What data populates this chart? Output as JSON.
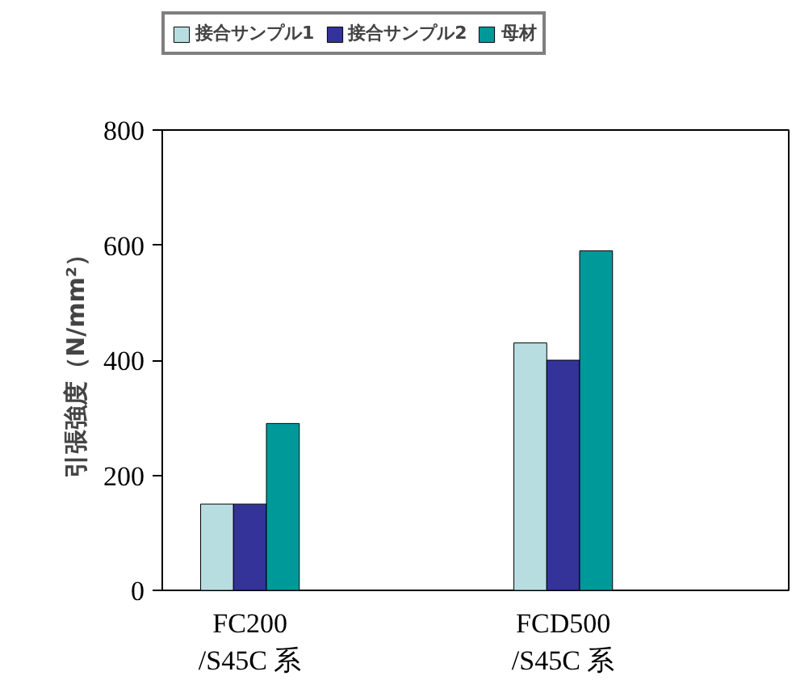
{
  "chart_data": {
    "type": "bar",
    "categories": [
      "FC200\n/S45C 系",
      "FCD500\n/S45C 系"
    ],
    "series": [
      {
        "name": "接合サンプル1",
        "color": "#b8dde0",
        "values": [
          150,
          430
        ]
      },
      {
        "name": "接合サンプル2",
        "color": "#333399",
        "values": [
          150,
          400
        ]
      },
      {
        "name": "母材",
        "color": "#009999",
        "values": [
          290,
          590
        ]
      }
    ],
    "ylabel": "引張強度（N/mm²）",
    "ylim": [
      0,
      800
    ],
    "yticks": [
      0,
      200,
      400,
      600,
      800
    ],
    "grid": false,
    "legend": "top"
  }
}
